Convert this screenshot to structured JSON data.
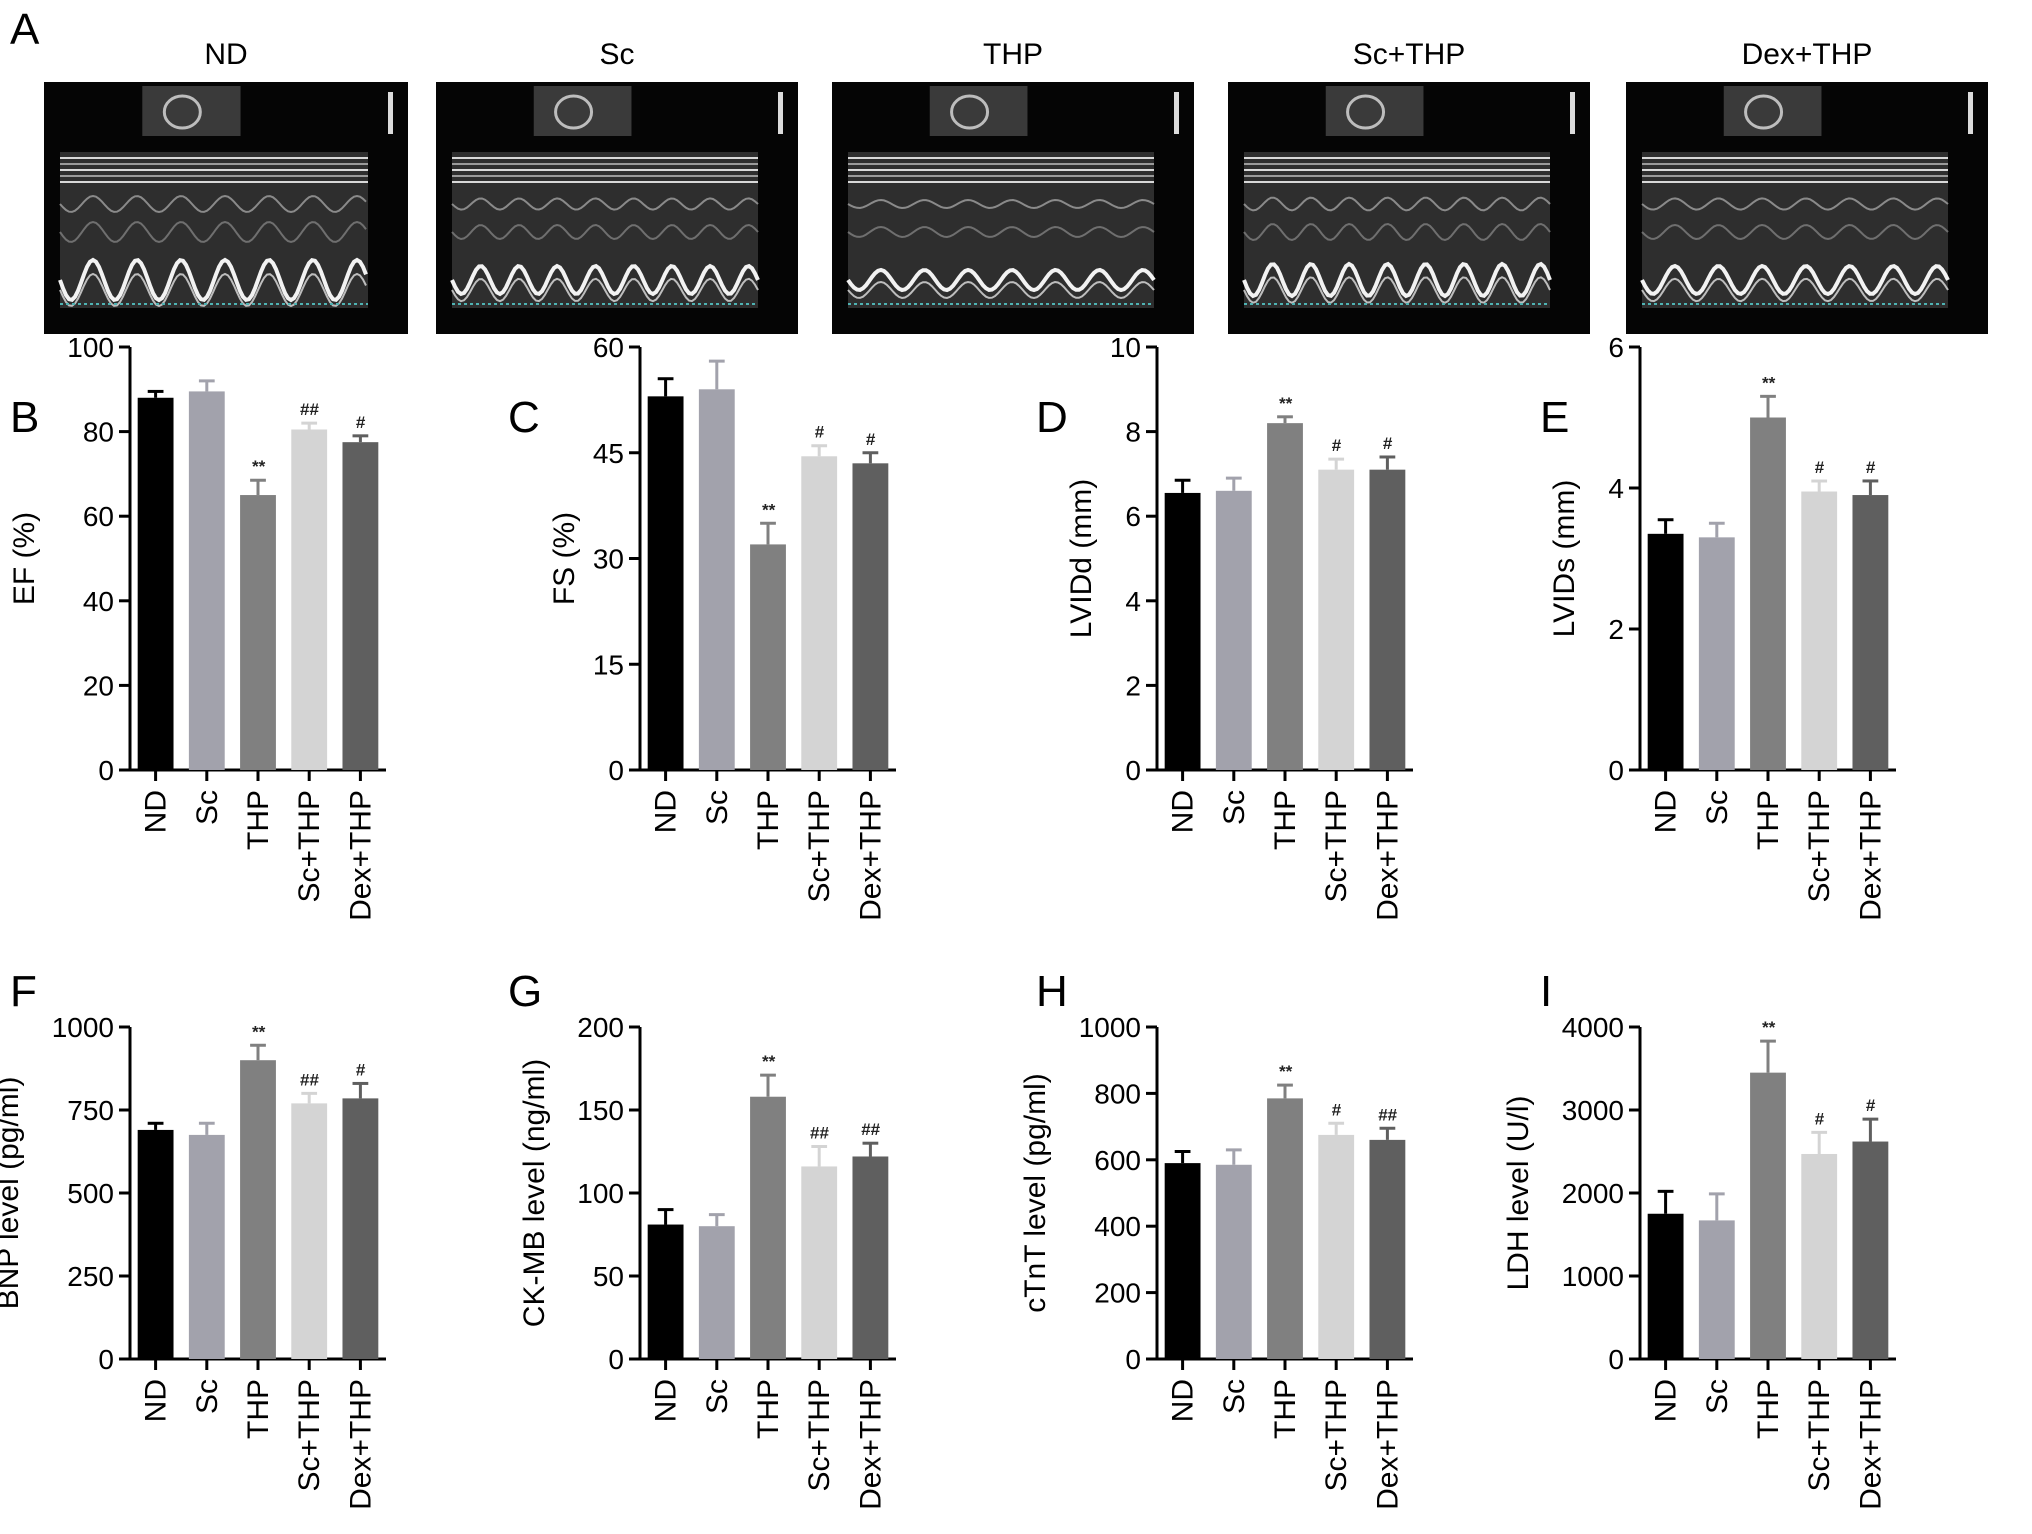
{
  "echo_panel": {
    "letter": "A",
    "groups": [
      "ND",
      "Sc",
      "THP",
      "Sc+THP",
      "Dex+THP"
    ]
  },
  "chart_data": [
    {
      "panel": "B",
      "type": "bar",
      "ylabel": "EF (%)",
      "ylim": [
        0,
        100
      ],
      "yticks": [
        0,
        20,
        40,
        60,
        80,
        100
      ],
      "categories": [
        "ND",
        "Sc",
        "THP",
        "Sc+THP",
        "Dex+THP"
      ],
      "values": [
        88,
        89.5,
        65,
        80.5,
        77.5
      ],
      "errors": [
        1.5,
        2.5,
        3.5,
        1.5,
        1.5
      ],
      "annotations": [
        "",
        "",
        "**",
        "##",
        "#"
      ]
    },
    {
      "panel": "C",
      "type": "bar",
      "ylabel": "FS (%)",
      "ylim": [
        0,
        60
      ],
      "yticks": [
        0,
        15,
        30,
        45,
        60
      ],
      "categories": [
        "ND",
        "Sc",
        "THP",
        "Sc+THP",
        "Dex+THP"
      ],
      "values": [
        53,
        54,
        32,
        44.5,
        43.5
      ],
      "errors": [
        2.5,
        4,
        3,
        1.5,
        1.5
      ],
      "annotations": [
        "",
        "",
        "**",
        "#",
        "#"
      ]
    },
    {
      "panel": "D",
      "type": "bar",
      "ylabel": "LVIDd (mm)",
      "ylim": [
        0,
        10
      ],
      "yticks": [
        0,
        2,
        4,
        6,
        8,
        10
      ],
      "categories": [
        "ND",
        "Sc",
        "THP",
        "Sc+THP",
        "Dex+THP"
      ],
      "values": [
        6.55,
        6.6,
        8.2,
        7.1,
        7.1
      ],
      "errors": [
        0.3,
        0.3,
        0.15,
        0.25,
        0.3
      ],
      "annotations": [
        "",
        "",
        "**",
        "#",
        "#"
      ]
    },
    {
      "panel": "E",
      "type": "bar",
      "ylabel": "LVIDs (mm)",
      "ylim": [
        0,
        6
      ],
      "yticks": [
        0,
        2,
        4,
        6
      ],
      "categories": [
        "ND",
        "Sc",
        "THP",
        "Sc+THP",
        "Dex+THP"
      ],
      "values": [
        3.35,
        3.3,
        5.0,
        3.95,
        3.9
      ],
      "errors": [
        0.2,
        0.2,
        0.3,
        0.15,
        0.2
      ],
      "annotations": [
        "",
        "",
        "**",
        "#",
        "#"
      ]
    },
    {
      "panel": "F",
      "type": "bar",
      "ylabel": "BNP level (pg/ml)",
      "ylim": [
        0,
        1000
      ],
      "yticks": [
        0,
        250,
        500,
        750,
        1000
      ],
      "categories": [
        "ND",
        "Sc",
        "THP",
        "Sc+THP",
        "Dex+THP"
      ],
      "values": [
        690,
        675,
        900,
        770,
        785
      ],
      "errors": [
        20,
        35,
        45,
        30,
        45
      ],
      "annotations": [
        "",
        "",
        "**",
        "##",
        "#"
      ]
    },
    {
      "panel": "G",
      "type": "bar",
      "ylabel": "CK-MB level (ng/ml)",
      "ylim": [
        0,
        200
      ],
      "yticks": [
        0,
        50,
        100,
        150,
        200
      ],
      "categories": [
        "ND",
        "Sc",
        "THP",
        "Sc+THP",
        "Dex+THP"
      ],
      "values": [
        81,
        80,
        158,
        116,
        122
      ],
      "errors": [
        9,
        7,
        13,
        12,
        8
      ],
      "annotations": [
        "",
        "",
        "**",
        "##",
        "##"
      ]
    },
    {
      "panel": "H",
      "type": "bar",
      "ylabel": "cTnT level (pg/ml)",
      "ylim": [
        0,
        1000
      ],
      "yticks": [
        0,
        200,
        400,
        600,
        800,
        1000
      ],
      "categories": [
        "ND",
        "Sc",
        "THP",
        "Sc+THP",
        "Dex+THP"
      ],
      "values": [
        590,
        585,
        785,
        675,
        660
      ],
      "errors": [
        35,
        45,
        40,
        35,
        35
      ],
      "annotations": [
        "",
        "",
        "**",
        "#",
        "##"
      ]
    },
    {
      "panel": "I",
      "type": "bar",
      "ylabel": "LDH level (U/l)",
      "ylim": [
        0,
        4000
      ],
      "yticks": [
        0,
        1000,
        2000,
        3000,
        4000
      ],
      "categories": [
        "ND",
        "Sc",
        "THP",
        "Sc+THP",
        "Dex+THP"
      ],
      "values": [
        1750,
        1670,
        3450,
        2470,
        2620
      ],
      "errors": [
        270,
        320,
        380,
        260,
        270
      ],
      "annotations": [
        "",
        "",
        "**",
        "#",
        "#"
      ]
    }
  ],
  "colors": {
    "bars": [
      "#000000",
      "#a2a2ac",
      "#808080",
      "#d4d4d4",
      "#5f5f5f"
    ]
  }
}
